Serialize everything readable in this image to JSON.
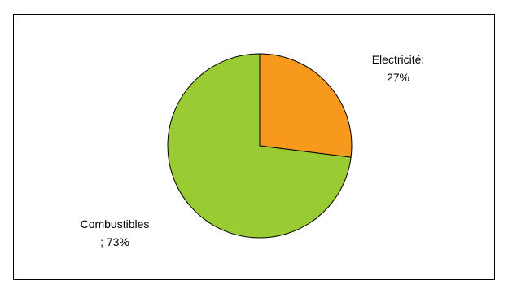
{
  "chart_data": {
    "type": "pie",
    "title": "",
    "slices": [
      {
        "label": "Electricité",
        "value": 27,
        "label_lines": [
          "Electricité;",
          "27%"
        ],
        "color": "#F7991C"
      },
      {
        "label": "Combustibles",
        "value": 73,
        "label_lines": [
          "Combustibles",
          "; 73%"
        ],
        "color": "#99CC33"
      }
    ],
    "start_angle": "12 o'clock",
    "direction": "clockwise",
    "legend": "none"
  }
}
